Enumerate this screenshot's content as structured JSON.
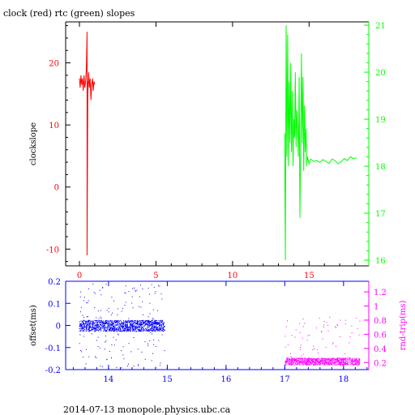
{
  "title": "clock (red) rtc (green) slopes",
  "footer": "2014-07-13 monopole.physics.ubc.ca",
  "colors": {
    "red": "#ff0000",
    "green": "#00ff00",
    "blue": "#0000ff",
    "magenta": "#ff00ff",
    "axis": "#000000"
  },
  "chart_data": [
    {
      "type": "line",
      "title": "clock (red) rtc (green) slopes",
      "xlabel": "",
      "ylabel": "clockslope",
      "xlim": [
        -0.9,
        18.9
      ],
      "ylim": [
        -12.7,
        26.6
      ],
      "xticks": [
        0,
        5,
        10,
        15
      ],
      "yticks": [
        -10,
        0,
        10,
        20
      ],
      "y2label": "",
      "y2lim": [
        15.88,
        21.07
      ],
      "y2ticks": [
        16,
        17,
        18,
        19,
        20,
        21
      ],
      "series": [
        {
          "name": "clock",
          "color": "red",
          "axis": "left",
          "x": [
            0.0,
            0.05,
            0.1,
            0.15,
            0.2,
            0.25,
            0.3,
            0.35,
            0.4,
            0.45,
            0.5,
            0.5,
            0.55,
            0.55,
            0.6,
            0.65,
            0.7,
            0.75,
            0.8,
            0.85,
            0.9,
            0.95,
            1.0
          ],
          "y": [
            17.5,
            16.0,
            18.0,
            16.5,
            17.5,
            15.5,
            18.0,
            16.0,
            17.0,
            19.0,
            25.0,
            -11.0,
            17.0,
            15.0,
            18.5,
            16.0,
            17.5,
            14.0,
            16.5,
            17.5,
            15.5,
            17.0,
            16.5
          ]
        },
        {
          "name": "rtc",
          "color": "green",
          "axis": "right",
          "x": [
            13.4,
            13.45,
            13.5,
            13.55,
            13.6,
            13.65,
            13.7,
            13.75,
            13.8,
            13.85,
            13.9,
            13.95,
            14.0,
            14.05,
            14.1,
            14.15,
            14.2,
            14.25,
            14.3,
            14.35,
            14.4,
            14.45,
            14.5,
            14.55,
            14.6,
            14.65,
            14.7,
            14.75,
            14.8,
            14.85,
            14.9,
            15.0,
            15.1,
            15.3,
            15.5,
            15.7,
            15.9,
            16.1,
            16.3,
            16.5,
            16.7,
            16.9,
            17.1,
            17.3,
            17.5,
            17.7,
            17.9,
            18.1
          ],
          "y": [
            18.7,
            16.0,
            21.0,
            18.2,
            20.8,
            18.0,
            19.8,
            18.5,
            20.2,
            18.3,
            19.6,
            18.0,
            19.0,
            18.6,
            20.0,
            18.4,
            19.2,
            18.7,
            18.2,
            19.9,
            16.9,
            18.4,
            20.4,
            18.5,
            19.9,
            17.9,
            19.3,
            18.3,
            18.8,
            18.0,
            18.2,
            18.05,
            18.15,
            18.1,
            18.12,
            18.08,
            18.14,
            18.1,
            18.06,
            18.15,
            18.12,
            18.05,
            18.1,
            18.16,
            18.12,
            18.2,
            18.16,
            18.18
          ]
        }
      ]
    },
    {
      "type": "scatter",
      "xlabel": "",
      "ylabel": "offset(ms)",
      "xlim": [
        13.27,
        18.43
      ],
      "ylim": [
        -0.2,
        0.2
      ],
      "xticks": [
        14,
        15,
        16,
        17,
        18
      ],
      "yticks": [
        -0.2,
        -0.1,
        0,
        0.1,
        0.2
      ],
      "y2label": "rnd-trip(ms)",
      "y2lim": [
        0.1,
        1.35
      ],
      "y2ticks": [
        0.2,
        0.4,
        0.6,
        0.8,
        1,
        1.2
      ],
      "series": [
        {
          "name": "offset",
          "color": "blue",
          "axis": "left",
          "x_range": [
            13.5,
            14.95
          ],
          "center": 0.0,
          "band": 0.025,
          "outlier_range": 0.2
        },
        {
          "name": "rnd-trip",
          "color": "magenta",
          "axis": "right",
          "x_range": [
            17.0,
            18.27
          ],
          "center": 0.22,
          "band": 0.05,
          "outlier_max": 1.28
        }
      ]
    }
  ]
}
